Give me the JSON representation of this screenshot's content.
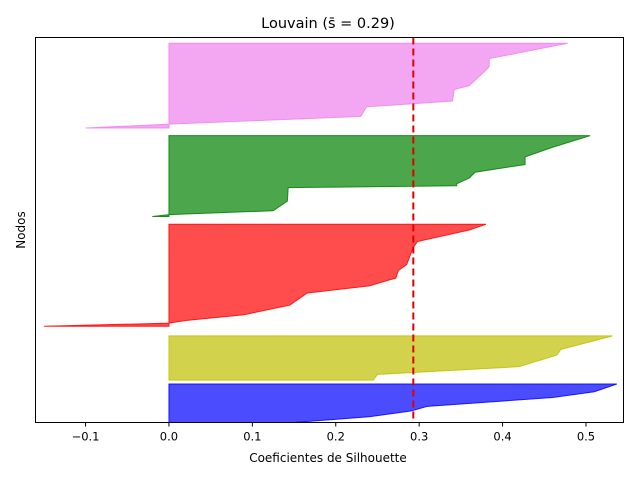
{
  "chart_data": {
    "type": "area",
    "title": "Louvain (s̄ = 0.29)",
    "xlabel": "Coeficientes de Silhouette",
    "ylabel": "Nodos",
    "xlim": [
      -0.16,
      0.545
    ],
    "ylim": [
      0,
      100
    ],
    "xticks": [
      -0.1,
      0.0,
      0.1,
      0.2,
      0.3,
      0.4,
      0.5
    ],
    "xtick_labels": [
      "−0.1",
      "0.0",
      "0.1",
      "0.2",
      "0.3",
      "0.4",
      "0.5"
    ],
    "yticks": [],
    "grid": false,
    "legend": "none",
    "mean_silhouette": 0.293,
    "mean_line_color": "#e00000",
    "clusters": [
      {
        "color": "#0000ff",
        "y_range": [
          0,
          10
        ],
        "profile": [
          {
            "y": 0.0,
            "x": 0.15
          },
          {
            "y": 1.5,
            "x": 0.24
          },
          {
            "y": 3.0,
            "x": 0.29
          },
          {
            "y": 4.2,
            "x": 0.31
          },
          {
            "y": 6.5,
            "x": 0.46
          },
          {
            "y": 8.0,
            "x": 0.51
          },
          {
            "y": 10.0,
            "x": 0.537
          }
        ]
      },
      {
        "color": "#bfbf00",
        "y_range": [
          11,
          22.5
        ],
        "profile": [
          {
            "y": 11.0,
            "x": 0.245
          },
          {
            "y": 12.5,
            "x": 0.25
          },
          {
            "y": 14.5,
            "x": 0.42
          },
          {
            "y": 17.5,
            "x": 0.465
          },
          {
            "y": 19.0,
            "x": 0.47
          },
          {
            "y": 22.5,
            "x": 0.532
          }
        ]
      },
      {
        "color": "#ff0000",
        "y_range": [
          25,
          51.5
        ],
        "profile": [
          {
            "y": 25.0,
            "x": -0.15
          },
          {
            "y": 25.8,
            "x": 0.0
          },
          {
            "y": 26.5,
            "x": 0.02
          },
          {
            "y": 28.0,
            "x": 0.09
          },
          {
            "y": 30.5,
            "x": 0.145
          },
          {
            "y": 33.5,
            "x": 0.165
          },
          {
            "y": 33.6,
            "x": 0.165
          },
          {
            "y": 35.5,
            "x": 0.24
          },
          {
            "y": 37.5,
            "x": 0.272
          },
          {
            "y": 39.5,
            "x": 0.275
          },
          {
            "y": 41.0,
            "x": 0.285
          },
          {
            "y": 45.5,
            "x": 0.293
          },
          {
            "y": 47.0,
            "x": 0.298
          },
          {
            "y": 50.0,
            "x": 0.36
          },
          {
            "y": 51.5,
            "x": 0.38
          }
        ]
      },
      {
        "color": "#008000",
        "y_range": [
          53.5,
          74.5
        ],
        "profile": [
          {
            "y": 53.5,
            "x": -0.02
          },
          {
            "y": 54.0,
            "x": 0.0
          },
          {
            "y": 55.0,
            "x": 0.125
          },
          {
            "y": 57.5,
            "x": 0.142
          },
          {
            "y": 57.6,
            "x": 0.142
          },
          {
            "y": 61.0,
            "x": 0.143
          },
          {
            "y": 61.5,
            "x": 0.345
          },
          {
            "y": 62.0,
            "x": 0.345
          },
          {
            "y": 63.5,
            "x": 0.36
          },
          {
            "y": 65.0,
            "x": 0.367
          },
          {
            "y": 67.0,
            "x": 0.427
          },
          {
            "y": 69.0,
            "x": 0.427
          },
          {
            "y": 71.5,
            "x": 0.46
          },
          {
            "y": 74.5,
            "x": 0.505
          }
        ]
      },
      {
        "color": "#ee82ee",
        "y_range": [
          76.5,
          98.5
        ],
        "profile": [
          {
            "y": 76.5,
            "x": -0.1
          },
          {
            "y": 77.5,
            "x": 0.0
          },
          {
            "y": 79.5,
            "x": 0.23
          },
          {
            "y": 82.0,
            "x": 0.237
          },
          {
            "y": 83.5,
            "x": 0.34
          },
          {
            "y": 86.5,
            "x": 0.342
          },
          {
            "y": 87.5,
            "x": 0.36
          },
          {
            "y": 91.5,
            "x": 0.38
          },
          {
            "y": 92.5,
            "x": 0.384
          },
          {
            "y": 94.5,
            "x": 0.384
          },
          {
            "y": 98.5,
            "x": 0.478
          }
        ]
      }
    ]
  }
}
